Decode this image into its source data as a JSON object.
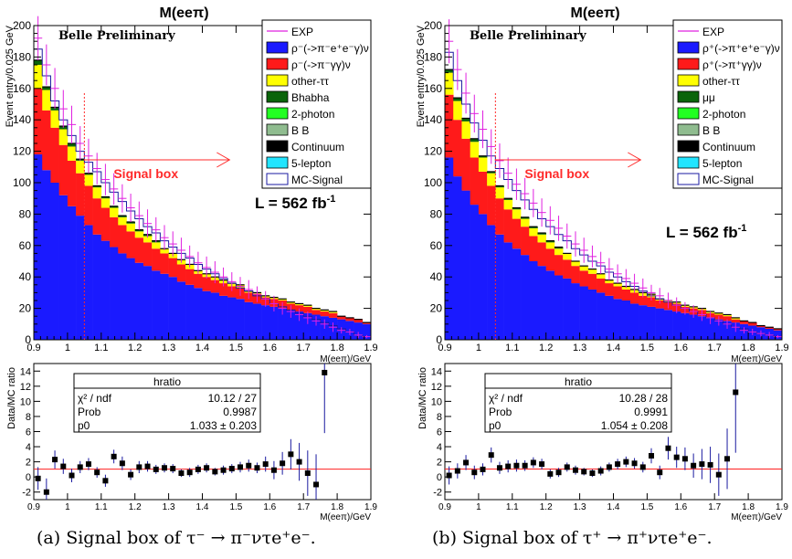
{
  "colors": {
    "exp": "#e020e0",
    "rho_eeg": "#1a1aff",
    "rho_gg": "#ff1a1a",
    "other_tt": "#ffff00",
    "bhabha_mumu": "#0a640a",
    "two_photon": "#22ff22",
    "bb": "#8fbc8f",
    "continuum": "#000000",
    "five_lepton": "#22e5ff",
    "mc_signal_line": "#1a1aa0",
    "fit_line": "#ff2020",
    "signal_box": "#ff2a2a"
  },
  "chart_data": [
    {
      "id": "a",
      "type": "histogram-stack",
      "title": "M(eeπ)",
      "label": "Belle Preliminary",
      "lumi_text": "L = 562 fb",
      "lumi_sup": "-1",
      "signal_box": "Signal box",
      "signal_cut": 1.05,
      "xlabel": "M(eeπ)/GeV",
      "ylabel": "Event entry/0.025 GeV",
      "xlim": [
        0.9,
        1.9
      ],
      "ylim": [
        0,
        200
      ],
      "x_ticks": [
        "0.9",
        "1",
        "1.1",
        "1.2",
        "1.3",
        "1.4",
        "1.5",
        "1.6",
        "1.7",
        "1.8",
        "1.9"
      ],
      "y_ticks": [
        "0",
        "20",
        "40",
        "60",
        "80",
        "100",
        "120",
        "140",
        "160",
        "180",
        "200"
      ],
      "legend": [
        "EXP",
        "ρ⁻(->π⁻e⁺e⁻γ)ν",
        "ρ⁻(->π⁻γγ)ν",
        "other-ττ",
        "Bhabha",
        "2-photon",
        "B B",
        "Continuum",
        "5-lepton",
        "MC-Signal"
      ],
      "bin_width": 0.025,
      "stack_series": [
        "rho_eeg",
        "rho_gg",
        "other_tt",
        "bhabha_mumu"
      ],
      "rho_eeg": [
        118,
        108,
        100,
        92,
        85,
        79,
        73,
        67,
        63,
        59,
        55,
        52,
        49,
        47,
        44,
        42,
        40,
        37,
        35,
        33,
        31,
        30,
        28,
        27,
        26,
        24,
        23,
        22,
        21,
        20,
        19,
        18,
        17,
        16,
        15,
        14,
        13,
        12,
        11,
        10
      ],
      "rho_gg": [
        42,
        38,
        35,
        32,
        29,
        27,
        25,
        23,
        21,
        19,
        18,
        17,
        16,
        15,
        14,
        13,
        12,
        11,
        10,
        9,
        9,
        8,
        8,
        7,
        7,
        6,
        6,
        5,
        5,
        5,
        4,
        4,
        4,
        3,
        3,
        3,
        2,
        2,
        2,
        1
      ],
      "other_tt": [
        15,
        13,
        11,
        10,
        9,
        8,
        7,
        7,
        6,
        6,
        5,
        5,
        4,
        4,
        4,
        3,
        3,
        3,
        3,
        2,
        2,
        2,
        2,
        2,
        2,
        1,
        1,
        1,
        1,
        1,
        1,
        1,
        1,
        1,
        1,
        1,
        0,
        0,
        0,
        0
      ],
      "bhabha_mumu": [
        3,
        2,
        2,
        2,
        2,
        1,
        1,
        1,
        1,
        1,
        1,
        1,
        1,
        1,
        1,
        0,
        0,
        0,
        0,
        0,
        0,
        0,
        0,
        0,
        0,
        0,
        0,
        0,
        0,
        0,
        0,
        0,
        0,
        0,
        0,
        0,
        0,
        0,
        0,
        0
      ],
      "mc_signal": [
        185,
        168,
        152,
        140,
        130,
        120,
        113,
        107,
        100,
        94,
        88,
        82,
        77,
        72,
        68,
        63,
        59,
        55,
        52,
        48,
        45,
        42,
        39,
        36,
        33,
        31,
        28,
        26,
        23,
        21,
        19,
        17,
        15,
        13,
        11,
        9,
        7,
        5,
        3,
        2
      ],
      "exp": [
        192,
        175,
        160,
        147,
        137,
        125,
        117,
        109,
        102,
        96,
        90,
        84,
        79,
        74,
        70,
        65,
        61,
        57,
        53,
        49,
        46,
        43,
        40,
        37,
        34,
        32,
        29,
        26,
        23,
        20,
        18,
        16,
        14,
        12,
        10,
        8,
        6,
        5,
        3,
        2
      ],
      "exp_err": [
        14,
        13,
        13,
        12,
        12,
        11,
        11,
        10,
        10,
        10,
        9,
        9,
        9,
        9,
        8,
        8,
        8,
        8,
        7,
        7,
        7,
        7,
        6,
        6,
        6,
        6,
        5,
        5,
        5,
        4,
        4,
        4,
        4,
        3,
        3,
        3,
        2,
        2,
        2,
        1
      ],
      "ratio": {
        "ylabel": "Data/MC ratio",
        "xlabel": "M(eeπ)/GeV",
        "ylim": [
          -3,
          15
        ],
        "y_ticks": [
          "-2",
          "0",
          "2",
          "4",
          "6",
          "8",
          "10",
          "12",
          "14"
        ],
        "stats_title": "hratio",
        "stats": [
          [
            "χ² / ndf",
            "10.12 / 27"
          ],
          [
            "Prob",
            "0.9987"
          ],
          [
            "p0",
            "1.033 ± 0.203"
          ]
        ],
        "fit_p0": 1.033,
        "x": [
          0.9,
          0.925,
          0.95,
          0.975,
          1.0,
          1.025,
          1.05,
          1.075,
          1.1,
          1.125,
          1.15,
          1.175,
          1.2,
          1.225,
          1.25,
          1.275,
          1.3,
          1.325,
          1.35,
          1.375,
          1.4,
          1.425,
          1.45,
          1.475,
          1.5,
          1.525,
          1.55,
          1.575,
          1.6,
          1.625,
          1.65,
          1.675,
          1.7,
          1.725,
          1.75
        ],
        "y": [
          -0.2,
          -2.0,
          2.3,
          1.4,
          0.2,
          1.3,
          1.7,
          0.6,
          -0.5,
          2.7,
          1.8,
          0.3,
          1.3,
          1.4,
          1.0,
          1.2,
          1.1,
          0.5,
          0.6,
          1.0,
          1.2,
          0.7,
          0.9,
          1.1,
          1.3,
          1.5,
          1.2,
          1.7,
          0.9,
          1.8,
          3.0,
          2.0,
          0.5,
          -1.0,
          13.8
        ],
        "err": [
          1.5,
          1.8,
          1.2,
          1.0,
          0.9,
          0.8,
          0.8,
          0.7,
          0.8,
          0.9,
          0.9,
          0.7,
          0.8,
          0.7,
          0.6,
          0.6,
          0.6,
          0.5,
          0.6,
          0.6,
          0.6,
          0.5,
          0.6,
          0.6,
          0.7,
          0.8,
          0.7,
          1.0,
          1.2,
          1.5,
          2.0,
          2.5,
          3.0,
          4.0,
          8.0
        ]
      },
      "caption": "(a) Signal box of τ⁻ → π⁻ντe⁺e⁻."
    },
    {
      "id": "b",
      "type": "histogram-stack",
      "title": "M(eeπ)",
      "label": "Belle Preliminary",
      "lumi_text": "L = 562 fb",
      "lumi_sup": "-1",
      "signal_box": "Signal box",
      "signal_cut": 1.05,
      "xlabel": "M(eeπ)/GeV",
      "ylabel": "Event entry/0.025 GeV",
      "xlim": [
        0.9,
        1.9
      ],
      "ylim": [
        0,
        200
      ],
      "x_ticks": [
        "0.9",
        "1",
        "1.1",
        "1.2",
        "1.3",
        "1.4",
        "1.5",
        "1.6",
        "1.7",
        "1.8",
        "1.9"
      ],
      "y_ticks": [
        "0",
        "20",
        "40",
        "60",
        "80",
        "100",
        "120",
        "140",
        "160",
        "180",
        "200"
      ],
      "legend": [
        "EXP",
        "ρ⁺(->π⁺e⁺e⁻γ)ν",
        "ρ⁺(->π⁺γγ)ν",
        "other-ττ",
        "μμ",
        "2-photon",
        "B B",
        "Continuum",
        "5-lepton",
        "MC-Signal"
      ],
      "bin_width": 0.025,
      "stack_series": [
        "rho_eeg",
        "rho_gg",
        "other_tt",
        "bhabha_mumu"
      ],
      "rho_eeg": [
        116,
        104,
        95,
        86,
        80,
        73,
        67,
        62,
        58,
        54,
        50,
        47,
        44,
        41,
        39,
        36,
        34,
        32,
        30,
        28,
        26,
        25,
        23,
        22,
        21,
        20,
        19,
        18,
        17,
        16,
        15,
        14,
        13,
        12,
        11,
        10,
        9,
        8,
        7,
        6
      ],
      "rho_gg": [
        40,
        36,
        33,
        30,
        27,
        25,
        23,
        21,
        19,
        18,
        16,
        15,
        14,
        13,
        12,
        11,
        10,
        10,
        9,
        8,
        8,
        7,
        7,
        6,
        6,
        5,
        5,
        5,
        4,
        4,
        4,
        3,
        3,
        3,
        2,
        2,
        2,
        1,
        1,
        1
      ],
      "other_tt": [
        14,
        12,
        11,
        10,
        9,
        8,
        7,
        6,
        6,
        5,
        5,
        5,
        4,
        4,
        4,
        3,
        3,
        3,
        3,
        2,
        2,
        2,
        2,
        2,
        2,
        1,
        1,
        1,
        1,
        1,
        1,
        1,
        1,
        1,
        1,
        0,
        0,
        0,
        0,
        0
      ],
      "bhabha_mumu": [
        2,
        2,
        2,
        2,
        1,
        1,
        1,
        1,
        1,
        1,
        1,
        1,
        1,
        1,
        0,
        0,
        0,
        0,
        0,
        0,
        0,
        0,
        0,
        0,
        0,
        0,
        0,
        0,
        0,
        0,
        0,
        0,
        0,
        0,
        0,
        0,
        0,
        0,
        0,
        0
      ],
      "mc_signal": [
        183,
        165,
        150,
        138,
        127,
        117,
        109,
        102,
        95,
        89,
        83,
        77,
        72,
        67,
        63,
        58,
        54,
        50,
        47,
        43,
        40,
        37,
        34,
        31,
        28,
        26,
        24,
        22,
        20,
        18,
        16,
        14,
        12,
        10,
        8,
        7,
        5,
        4,
        3,
        2
      ],
      "exp": [
        190,
        172,
        157,
        144,
        134,
        123,
        114,
        106,
        99,
        93,
        87,
        81,
        76,
        71,
        66,
        61,
        57,
        53,
        49,
        45,
        42,
        39,
        36,
        33,
        30,
        28,
        25,
        22,
        20,
        18,
        16,
        14,
        12,
        10,
        8,
        6,
        5,
        4,
        3,
        2
      ],
      "exp_err": [
        14,
        13,
        13,
        12,
        12,
        11,
        11,
        10,
        10,
        10,
        9,
        9,
        9,
        8,
        8,
        8,
        8,
        7,
        7,
        7,
        6,
        6,
        6,
        6,
        5,
        5,
        5,
        5,
        4,
        4,
        4,
        4,
        3,
        3,
        3,
        2,
        2,
        2,
        2,
        1
      ],
      "ratio": {
        "ylabel": "Data/MC ratio",
        "xlabel": "M(eeπ)/GeV",
        "ylim": [
          -3,
          15
        ],
        "y_ticks": [
          "-2",
          "0",
          "2",
          "4",
          "6",
          "8",
          "10",
          "12",
          "14"
        ],
        "stats_title": "hratio",
        "stats": [
          [
            "χ² / ndf",
            "10.28 / 28"
          ],
          [
            "Prob",
            "0.9991"
          ],
          [
            "p0",
            "1.054 ± 0.208"
          ]
        ],
        "fit_p0": 1.054,
        "x": [
          0.9,
          0.925,
          0.95,
          0.975,
          1.0,
          1.025,
          1.05,
          1.075,
          1.1,
          1.125,
          1.15,
          1.175,
          1.2,
          1.225,
          1.25,
          1.275,
          1.3,
          1.325,
          1.35,
          1.375,
          1.4,
          1.425,
          1.45,
          1.475,
          1.5,
          1.525,
          1.55,
          1.575,
          1.6,
          1.625,
          1.65,
          1.675,
          1.7,
          1.725,
          1.75
        ],
        "y": [
          0.2,
          0.8,
          1.9,
          0.6,
          1.0,
          2.9,
          1.2,
          1.4,
          1.5,
          1.5,
          1.9,
          1.7,
          0.4,
          0.6,
          1.3,
          0.9,
          0.7,
          0.5,
          0.8,
          1.3,
          1.7,
          2.0,
          1.8,
          1.3,
          2.8,
          0.6,
          3.8,
          2.6,
          2.4,
          1.5,
          1.7,
          1.6,
          0.3,
          2.4,
          11.2
        ],
        "err": [
          1.2,
          1.0,
          1.0,
          0.9,
          0.8,
          1.0,
          0.8,
          0.8,
          0.8,
          0.7,
          0.7,
          0.7,
          0.6,
          0.6,
          0.6,
          0.6,
          0.5,
          0.5,
          0.6,
          0.6,
          0.7,
          0.7,
          0.7,
          0.7,
          1.0,
          0.9,
          1.5,
          1.4,
          1.5,
          1.6,
          2.0,
          2.4,
          2.8,
          4.0,
          8.0
        ]
      },
      "caption": "(b) Signal box of τ⁺ → π⁺ντe⁺e⁻."
    }
  ]
}
